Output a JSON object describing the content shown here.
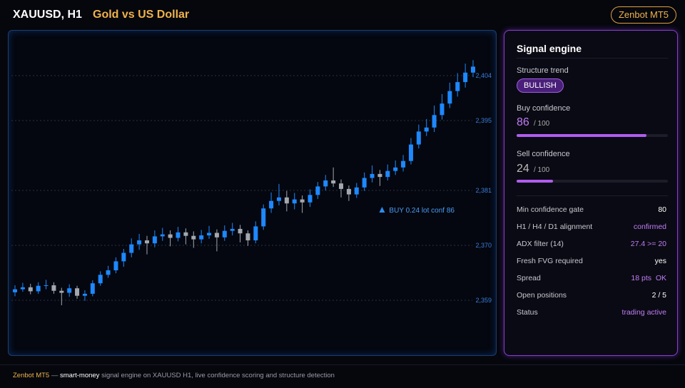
{
  "header": {
    "symbol": "XAUUSD, H1",
    "name": "Gold vs US Dollar",
    "badge": "Zenbot MT5"
  },
  "chart_data": {
    "type": "candlestick",
    "colors": {
      "up": "#1e88ff",
      "down": "#a3a7ae"
    },
    "ylim": [
      2348,
      2413
    ],
    "yticks": [
      {
        "value": 2359,
        "label": "2,359"
      },
      {
        "value": 2370,
        "label": "2,370"
      },
      {
        "value": 2381,
        "label": "2,381"
      },
      {
        "value": 2395,
        "label": "2,395"
      },
      {
        "value": 2404,
        "label": "2,404"
      }
    ],
    "grid": true,
    "annotation": {
      "text": "BUY 0.24 lot conf 86",
      "index": 47
    },
    "candles": [
      [
        2360.6,
        2362.0,
        2359.8,
        2361.2
      ],
      [
        2361.2,
        2362.5,
        2360.7,
        2361.6
      ],
      [
        2361.6,
        2362.3,
        2360.2,
        2360.8
      ],
      [
        2360.8,
        2362.6,
        2360.3,
        2361.9
      ],
      [
        2361.9,
        2363.1,
        2361.2,
        2362.0
      ],
      [
        2362.0,
        2362.6,
        2360.3,
        2360.9
      ],
      [
        2360.9,
        2361.5,
        2358.0,
        2360.5
      ],
      [
        2360.5,
        2362.2,
        2359.7,
        2361.4
      ],
      [
        2361.4,
        2361.9,
        2359.3,
        2359.9
      ],
      [
        2359.9,
        2361.0,
        2358.9,
        2360.3
      ],
      [
        2360.3,
        2363.0,
        2359.8,
        2362.4
      ],
      [
        2362.4,
        2364.8,
        2361.9,
        2364.1
      ],
      [
        2364.1,
        2365.9,
        2363.5,
        2365.0
      ],
      [
        2365.0,
        2367.6,
        2364.4,
        2366.8
      ],
      [
        2366.8,
        2369.3,
        2365.7,
        2368.5
      ],
      [
        2368.5,
        2371.4,
        2367.6,
        2370.2
      ],
      [
        2370.2,
        2372.3,
        2369.1,
        2371.0
      ],
      [
        2371.0,
        2371.9,
        2368.2,
        2370.4
      ],
      [
        2370.4,
        2373.0,
        2369.6,
        2371.8
      ],
      [
        2371.8,
        2373.5,
        2370.9,
        2372.2
      ],
      [
        2372.2,
        2373.0,
        2369.8,
        2371.5
      ],
      [
        2371.5,
        2373.7,
        2370.8,
        2372.6
      ],
      [
        2372.6,
        2373.4,
        2370.2,
        2371.9
      ],
      [
        2371.9,
        2372.8,
        2369.5,
        2371.2
      ],
      [
        2371.2,
        2373.1,
        2370.4,
        2372.0
      ],
      [
        2372.0,
        2373.9,
        2371.3,
        2372.5
      ],
      [
        2372.5,
        2373.2,
        2368.8,
        2371.6
      ],
      [
        2371.6,
        2374.0,
        2370.9,
        2372.9
      ],
      [
        2372.9,
        2374.5,
        2372.0,
        2373.3
      ],
      [
        2373.3,
        2374.1,
        2370.6,
        2372.4
      ],
      [
        2372.4,
        2373.0,
        2369.9,
        2371.0
      ],
      [
        2371.0,
        2374.8,
        2370.4,
        2373.8
      ],
      [
        2373.8,
        2378.2,
        2373.1,
        2377.4
      ],
      [
        2377.4,
        2380.6,
        2376.5,
        2378.9
      ],
      [
        2378.9,
        2382.3,
        2378.0,
        2379.6
      ],
      [
        2379.6,
        2380.9,
        2376.8,
        2378.4
      ],
      [
        2378.4,
        2380.5,
        2377.2,
        2379.2
      ],
      [
        2379.2,
        2380.0,
        2376.5,
        2378.6
      ],
      [
        2378.6,
        2381.2,
        2377.7,
        2380.1
      ],
      [
        2380.1,
        2382.7,
        2379.3,
        2381.8
      ],
      [
        2381.8,
        2384.1,
        2381.0,
        2383.0
      ],
      [
        2383.0,
        2385.6,
        2381.7,
        2382.4
      ],
      [
        2382.4,
        2383.2,
        2379.6,
        2381.3
      ],
      [
        2381.3,
        2382.0,
        2378.9,
        2380.2
      ],
      [
        2380.2,
        2382.5,
        2379.5,
        2381.6
      ],
      [
        2381.6,
        2384.6,
        2380.9,
        2383.5
      ],
      [
        2383.5,
        2386.0,
        2382.6,
        2384.3
      ],
      [
        2384.3,
        2385.1,
        2381.9,
        2383.7
      ],
      [
        2383.7,
        2386.2,
        2383.0,
        2384.9
      ],
      [
        2384.9,
        2387.0,
        2384.1,
        2385.6
      ],
      [
        2385.6,
        2388.1,
        2384.8,
        2386.9
      ],
      [
        2386.9,
        2391.5,
        2386.2,
        2390.2
      ],
      [
        2390.2,
        2394.2,
        2389.4,
        2392.8
      ],
      [
        2392.8,
        2395.3,
        2391.9,
        2393.6
      ],
      [
        2393.6,
        2398.0,
        2392.7,
        2396.1
      ],
      [
        2396.1,
        2400.3,
        2395.2,
        2398.4
      ],
      [
        2398.4,
        2402.6,
        2397.5,
        2400.9
      ],
      [
        2400.9,
        2404.5,
        2399.8,
        2402.7
      ],
      [
        2402.7,
        2406.4,
        2401.6,
        2404.6
      ],
      [
        2404.6,
        2407.1,
        2403.7,
        2405.8
      ]
    ]
  },
  "panel": {
    "title": "Signal engine",
    "trend_label": "Structure trend",
    "trend": "BULLISH",
    "buy": {
      "label": "Buy confidence",
      "value": 86,
      "scale": {
        "value": 100,
        "label": "/ 100"
      },
      "color": "#b15cf0"
    },
    "sell": {
      "label": "Sell confidence",
      "value": 24,
      "scale": {
        "value": 100,
        "label": "/ 100"
      },
      "color": "#b15cf0"
    },
    "rows": [
      {
        "label": "Min confidence gate",
        "value": "80",
        "color": "#ffffff"
      },
      {
        "label": "H1 / H4 / D1 alignment",
        "value": "confirmed",
        "color": "#c07df5"
      },
      {
        "label": "ADX filter (14)",
        "value": "27.4 >= 20",
        "color": "#c07df5"
      },
      {
        "label": "Fresh FVG required",
        "value": "yes",
        "color": "#ffffff"
      },
      {
        "label": "Spread",
        "value": "18 pts  OK",
        "color": "#c07df5"
      },
      {
        "label": "Open positions",
        "value": "2 / 5",
        "color": "#ffffff"
      },
      {
        "label": "Status",
        "value": "trading active",
        "color": "#c07df5"
      }
    ]
  },
  "footer": {
    "brand": "Zenbot MT5",
    "dash": "—",
    "highlight": "smart-money",
    "text": "signal engine on XAUUSD H1, live confidence scoring and structure detection"
  }
}
